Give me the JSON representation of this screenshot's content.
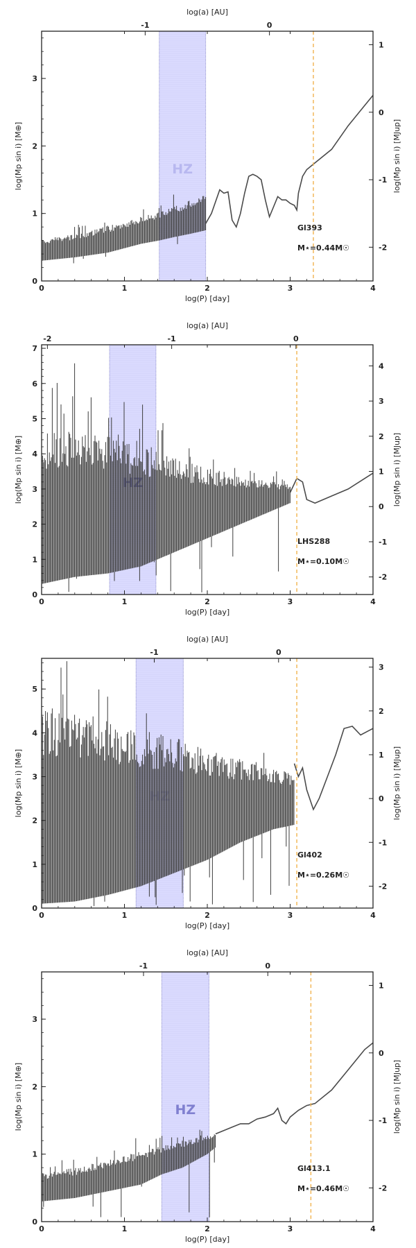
{
  "chart_data": [
    {
      "type": "line",
      "panel_label": "Gl393",
      "mass_label": "M⋆=0.44M☉",
      "xlabel": "log(P) [day]",
      "top_xlabel": "log(a) [AU]",
      "ylabel": "log(Mp sin i) [M⊕]",
      "right_ylabel": "log(Mp sin i) [MJup]",
      "xlim": [
        0,
        4
      ],
      "ylim": [
        0,
        3.7
      ],
      "x_ticks": [
        "0",
        "1",
        "2",
        "3",
        "4"
      ],
      "y_ticks": [
        "0",
        "1",
        "2",
        "3"
      ],
      "top_ticks": [
        {
          "label": "-1",
          "logP": 1.25
        },
        {
          "label": "0",
          "logP": 2.75
        }
      ],
      "right_ticks": [
        {
          "label": "1",
          "logM": 3.5
        },
        {
          "label": "0",
          "logM": 2.5
        },
        {
          "label": "-1",
          "logM": 1.5
        },
        {
          "label": "-2",
          "logM": 0.5
        }
      ],
      "hz_label": "HZ",
      "hz_range": [
        1.42,
        1.98
      ],
      "dashed_line_x": 3.28,
      "series": [
        {
          "name": "",
          "style": "dense",
          "x": [
            0,
            0.4,
            0.8,
            1.2,
            1.42,
            1.6,
            1.8,
            1.98
          ],
          "upper": [
            0.62,
            0.7,
            0.82,
            0.95,
            1.03,
            1.1,
            1.2,
            1.28
          ],
          "lower": [
            0.3,
            0.35,
            0.42,
            0.55,
            0.6,
            0.65,
            0.7,
            0.75
          ]
        },
        {
          "name": "",
          "style": "line",
          "x": [
            1.98,
            2.05,
            2.15,
            2.2,
            2.25,
            2.3,
            2.35,
            2.4,
            2.45,
            2.5,
            2.55,
            2.6,
            2.65,
            2.7,
            2.75,
            2.8,
            2.85,
            2.9,
            2.95,
            3.0,
            3.05,
            3.08,
            3.1,
            3.15,
            3.2,
            3.3,
            3.5,
            3.7,
            3.9,
            4.0
          ],
          "y": [
            0.85,
            1.0,
            1.35,
            1.3,
            1.32,
            0.9,
            0.8,
            1.0,
            1.3,
            1.55,
            1.58,
            1.55,
            1.5,
            1.2,
            0.95,
            1.1,
            1.25,
            1.2,
            1.2,
            1.15,
            1.12,
            1.05,
            1.3,
            1.55,
            1.65,
            1.75,
            1.95,
            2.3,
            2.6,
            2.75
          ]
        }
      ]
    },
    {
      "type": "line",
      "panel_label": "LHS288",
      "mass_label": "M⋆=0.10M☉",
      "xlabel": "log(P) [day]",
      "top_xlabel": "log(a) [AU]",
      "ylabel": "log(Mp sin i) [M⊕]",
      "right_ylabel": "log(Mp sin i) [MJup]",
      "xlim": [
        0,
        4
      ],
      "ylim": [
        0,
        7.1
      ],
      "x_ticks": [
        "0",
        "1",
        "2",
        "3",
        "4"
      ],
      "y_ticks": [
        "0",
        "1",
        "2",
        "3",
        "4",
        "5",
        "6",
        "7"
      ],
      "top_ticks": [
        {
          "label": "-2",
          "logP": 0.07
        },
        {
          "label": "-1",
          "logP": 1.57
        },
        {
          "label": "0",
          "logP": 3.07
        }
      ],
      "right_ticks": [
        {
          "label": "4",
          "logM": 6.5
        },
        {
          "label": "3",
          "logM": 5.5
        },
        {
          "label": "2",
          "logM": 4.5
        },
        {
          "label": "1",
          "logM": 3.5
        },
        {
          "label": "0",
          "logM": 2.5
        },
        {
          "label": "-1",
          "logM": 1.5
        },
        {
          "label": "-2",
          "logM": 0.5
        }
      ],
      "hz_label": "HZ",
      "hz_range": [
        0.82,
        1.38
      ],
      "dashed_line_x": 3.08,
      "series": [
        {
          "name": "",
          "style": "dense",
          "x": [
            0,
            0.4,
            0.8,
            1.2,
            1.6,
            2.0,
            2.4,
            2.8,
            3.0
          ],
          "upper": [
            4.6,
            4.7,
            4.5,
            4.2,
            3.9,
            3.6,
            3.4,
            3.2,
            3.1
          ],
          "lower": [
            0.3,
            0.5,
            0.6,
            0.8,
            1.2,
            1.6,
            2.0,
            2.4,
            2.6
          ]
        },
        {
          "name": "",
          "style": "line",
          "x": [
            3.0,
            3.08,
            3.15,
            3.2,
            3.3,
            3.5,
            3.7,
            3.9,
            4.0
          ],
          "y": [
            2.9,
            3.3,
            3.2,
            2.7,
            2.6,
            2.8,
            3.0,
            3.3,
            3.45
          ]
        }
      ]
    },
    {
      "type": "line",
      "panel_label": "Gl402",
      "mass_label": "M⋆=0.26M☉",
      "xlabel": "log(P) [day]",
      "top_xlabel": "log(a) [AU]",
      "ylabel": "log(Mp sin i) [M⊕]",
      "right_ylabel": "log(Mp sin i) [MJup]",
      "xlim": [
        0,
        4
      ],
      "ylim": [
        0,
        5.7
      ],
      "x_ticks": [
        "0",
        "1",
        "2",
        "3",
        "4"
      ],
      "y_ticks": [
        "0",
        "1",
        "2",
        "3",
        "4",
        "5"
      ],
      "top_ticks": [
        {
          "label": "-1",
          "logP": 1.36
        },
        {
          "label": "0",
          "logP": 2.86
        }
      ],
      "right_ticks": [
        {
          "label": "3",
          "logM": 5.5
        },
        {
          "label": "2",
          "logM": 4.5
        },
        {
          "label": "1",
          "logM": 3.5
        },
        {
          "label": "0",
          "logM": 2.5
        },
        {
          "label": "-1",
          "logM": 1.5
        },
        {
          "label": "-2",
          "logM": 0.5
        }
      ],
      "hz_label": "HZ",
      "hz_range": [
        1.14,
        1.71
      ],
      "dashed_line_x": 3.08,
      "series": [
        {
          "name": "",
          "style": "dense",
          "x": [
            0,
            0.4,
            0.8,
            1.2,
            1.6,
            2.0,
            2.4,
            2.8,
            3.05
          ],
          "upper": [
            4.6,
            4.5,
            4.3,
            4.1,
            3.9,
            3.6,
            3.4,
            3.2,
            3.1
          ],
          "lower": [
            0.1,
            0.15,
            0.3,
            0.5,
            0.8,
            1.1,
            1.5,
            1.8,
            1.9
          ]
        },
        {
          "name": "",
          "style": "line",
          "x": [
            3.05,
            3.1,
            3.15,
            3.2,
            3.28,
            3.35,
            3.45,
            3.55,
            3.65,
            3.75,
            3.85,
            3.95,
            4.0
          ],
          "y": [
            3.3,
            3.0,
            3.2,
            2.7,
            2.25,
            2.5,
            3.0,
            3.5,
            4.1,
            4.15,
            3.95,
            4.05,
            4.1
          ]
        }
      ]
    },
    {
      "type": "line",
      "panel_label": "Gl413.1",
      "mass_label": "M⋆=0.46M☉",
      "xlabel": "log(P) [day]",
      "top_xlabel": "log(a) [AU]",
      "ylabel": "log(Mp sin i) [M⊕]",
      "right_ylabel": "log(Mp sin i) [MJup]",
      "xlim": [
        0,
        4
      ],
      "ylim": [
        0,
        3.7
      ],
      "x_ticks": [
        "0",
        "1",
        "2",
        "3",
        "4"
      ],
      "y_ticks": [
        "0",
        "1",
        "2",
        "3"
      ],
      "top_ticks": [
        {
          "label": "-1",
          "logP": 1.23
        },
        {
          "label": "0",
          "logP": 2.73
        }
      ],
      "right_ticks": [
        {
          "label": "1",
          "logM": 3.5
        },
        {
          "label": "0",
          "logM": 2.5
        },
        {
          "label": "-1",
          "logM": 1.5
        },
        {
          "label": "-2",
          "logM": 0.5
        }
      ],
      "hz_label": "HZ",
      "hz_range": [
        1.45,
        2.02
      ],
      "dashed_line_x": 3.25,
      "series": [
        {
          "name": "",
          "style": "dense",
          "x": [
            0,
            0.4,
            0.8,
            1.2,
            1.45,
            1.7,
            2.0,
            2.1
          ],
          "upper": [
            0.72,
            0.8,
            0.92,
            1.05,
            1.12,
            1.2,
            1.28,
            1.3
          ],
          "lower": [
            0.3,
            0.35,
            0.45,
            0.55,
            0.7,
            0.8,
            1.0,
            1.1
          ]
        },
        {
          "name": "",
          "style": "line",
          "x": [
            2.1,
            2.2,
            2.3,
            2.4,
            2.5,
            2.6,
            2.7,
            2.8,
            2.85,
            2.9,
            2.95,
            3.0,
            3.1,
            3.2,
            3.3,
            3.5,
            3.7,
            3.9,
            4.0
          ],
          "y": [
            1.3,
            1.35,
            1.4,
            1.45,
            1.45,
            1.52,
            1.55,
            1.6,
            1.68,
            1.5,
            1.45,
            1.55,
            1.65,
            1.72,
            1.75,
            1.95,
            2.25,
            2.55,
            2.65
          ]
        }
      ]
    }
  ]
}
